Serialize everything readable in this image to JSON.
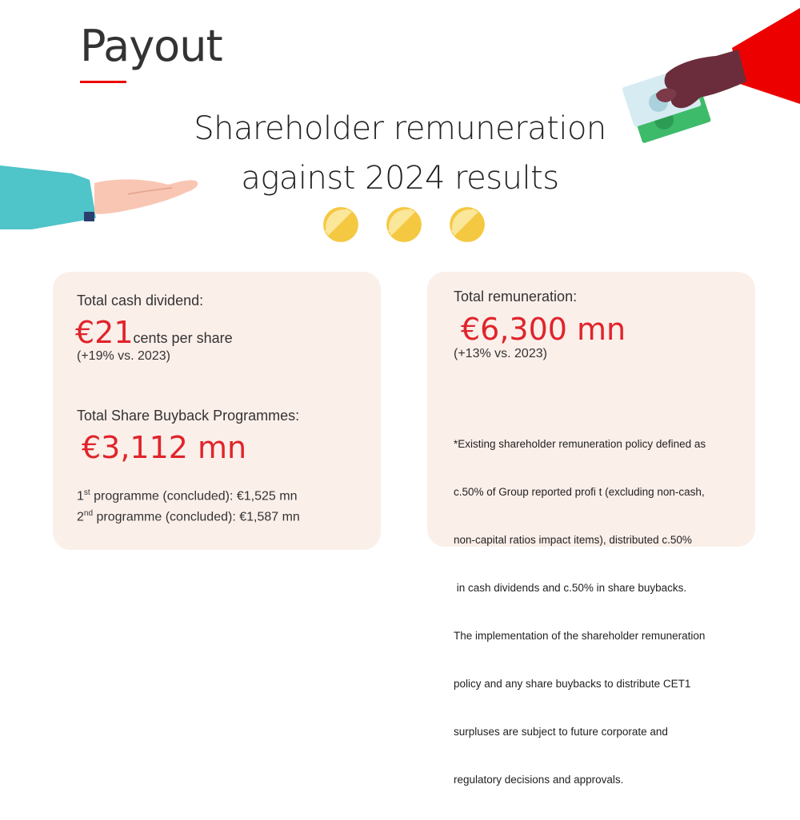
{
  "colors": {
    "accent": "#ec0000",
    "card_bg": "#fbefea",
    "coin": "#f5c842",
    "coin_light": "#fbe79a"
  },
  "header": {
    "title": "Payout",
    "subtitle_line1": "Shareholder remuneration",
    "subtitle_line2": "against 2024 results"
  },
  "left_card": {
    "dividend_label": "Total cash dividend:",
    "dividend_value": "€21",
    "dividend_unit": "cents per share",
    "dividend_change": "(+19% vs. 2023)",
    "buyback_label": "Total Share Buyback Programmes:",
    "buyback_value": "€3,112 mn",
    "programmes": [
      {
        "ordinal": "1",
        "suffix": "st",
        "text": " programme (concluded): €1,525 mn"
      },
      {
        "ordinal": "2",
        "suffix": "nd",
        "text": " programme (concluded): €1,587 mn"
      }
    ]
  },
  "right_card": {
    "total_label": "Total remuneration:",
    "total_value": "€6,300 mn",
    "total_change": "(+13% vs. 2023)",
    "note_lines": [
      "*Existing shareholder remuneration policy defined as",
      "c.50% of Group reported profi t (excluding non-cash,",
      "non-capital ratios impact items), distributed c.50%",
      " in cash dividends and c.50% in share buybacks.",
      "The implementation of the shareholder remuneration",
      "policy and any share buybacks to distribute CET1",
      "surpluses are subject to future corporate and",
      "regulatory decisions and approvals."
    ]
  },
  "illustrations": {
    "left": "receiving-hand-icon",
    "right": "hand-with-money-icon",
    "coins": [
      "coin-icon",
      "coin-icon",
      "coin-icon"
    ]
  }
}
